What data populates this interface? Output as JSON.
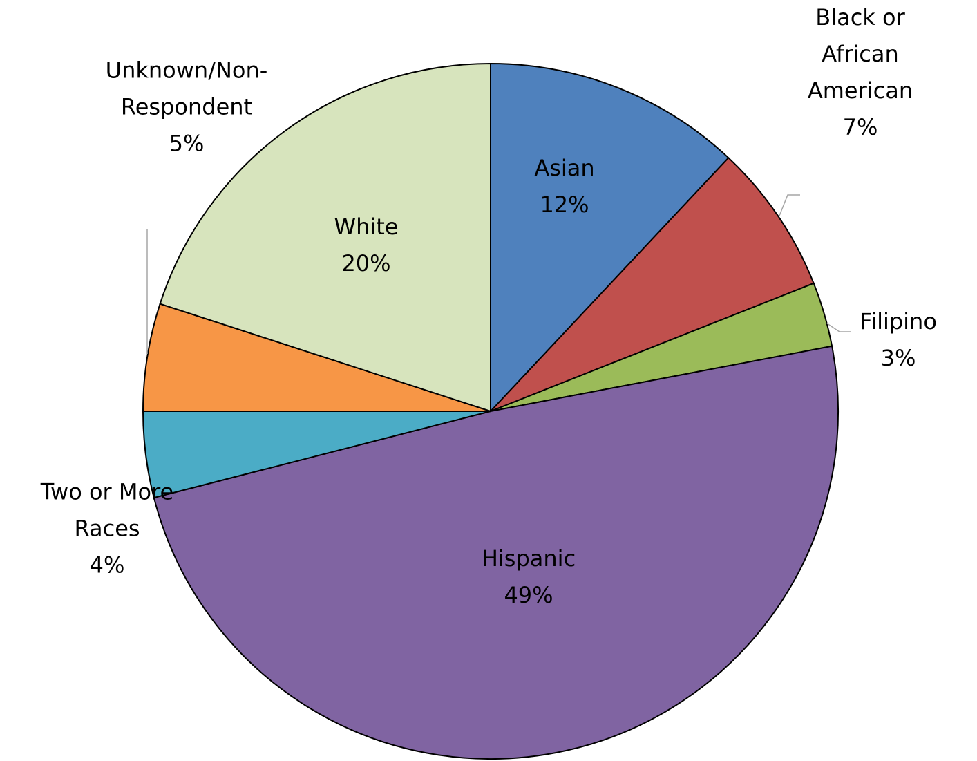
{
  "chart_data": {
    "type": "pie",
    "categories": [
      "Asian",
      "Black or African American",
      "Filipino",
      "Hispanic",
      "Two or More Races",
      "Unknown/Non-Respondent",
      "White"
    ],
    "values": [
      12,
      7,
      3,
      49,
      4,
      5,
      20
    ],
    "value_labels": [
      "12%",
      "7%",
      "3%",
      "49%",
      "4%",
      "5%",
      "20%"
    ],
    "colors": [
      "#4f81bd",
      "#c0504d",
      "#9bbb59",
      "#8064a2",
      "#4bacc6",
      "#f79646",
      "#d7e4bd"
    ]
  }
}
